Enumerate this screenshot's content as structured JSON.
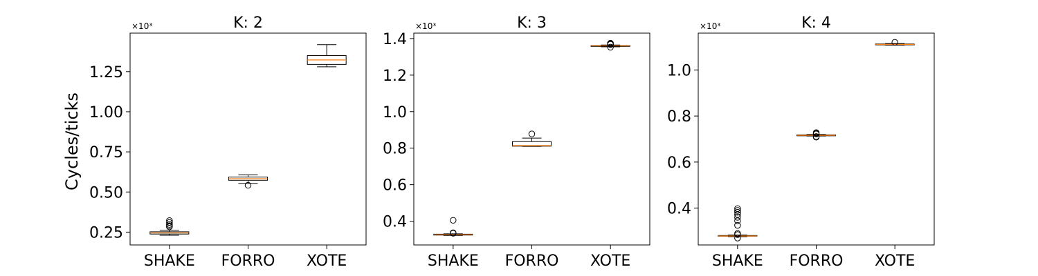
{
  "figure": {
    "ylabel": "Cycles/ticks"
  },
  "chart_data": [
    {
      "type": "box",
      "title": "K: 2",
      "categories": [
        "SHAKE",
        "FORRO",
        "XOTE"
      ],
      "ylabel": "Cycles/ticks",
      "y_multiplier_label": "×10³",
      "ylim": [
        0.17,
        1.49
      ],
      "yticks": [
        0.25,
        0.5,
        0.75,
        1.0,
        1.25
      ],
      "ytick_labels": [
        "0.25",
        "0.50",
        "0.75",
        "1.00",
        "1.25"
      ],
      "boxes": [
        {
          "category": "SHAKE",
          "whisker_low": 0.23,
          "q1": 0.238,
          "median": 0.245,
          "q3": 0.252,
          "whisker_high": 0.262,
          "outliers": [
            0.283,
            0.29,
            0.298,
            0.31,
            0.322
          ]
        },
        {
          "category": "FORRO",
          "whisker_low": 0.553,
          "q1": 0.573,
          "median": 0.583,
          "q3": 0.593,
          "whisker_high": 0.607,
          "outliers": [
            0.542
          ]
        },
        {
          "category": "XOTE",
          "whisker_low": 1.28,
          "q1": 1.295,
          "median": 1.323,
          "q3": 1.35,
          "whisker_high": 1.418,
          "outliers": []
        }
      ]
    },
    {
      "type": "box",
      "title": "K: 3",
      "categories": [
        "SHAKE",
        "FORRO",
        "XOTE"
      ],
      "ylabel": "",
      "y_multiplier_label": "×10³",
      "ylim": [
        0.27,
        1.43
      ],
      "yticks": [
        0.4,
        0.6,
        0.8,
        1.0,
        1.2,
        1.4
      ],
      "ytick_labels": [
        "0.4",
        "0.6",
        "0.8",
        "1.0",
        "1.2",
        "1.4"
      ],
      "boxes": [
        {
          "category": "SHAKE",
          "whisker_low": 0.322,
          "q1": 0.324,
          "median": 0.326,
          "q3": 0.329,
          "whisker_high": 0.331,
          "outliers": [
            0.334,
            0.337,
            0.405
          ]
        },
        {
          "category": "FORRO",
          "whisker_low": 0.81,
          "q1": 0.811,
          "median": 0.814,
          "q3": 0.836,
          "whisker_high": 0.855,
          "outliers": [
            0.878
          ]
        },
        {
          "category": "XOTE",
          "whisker_low": 1.355,
          "q1": 1.357,
          "median": 1.36,
          "q3": 1.362,
          "whisker_high": 1.365,
          "outliers": [
            1.353,
            1.368,
            1.372,
            1.375
          ]
        }
      ]
    },
    {
      "type": "box",
      "title": "K: 4",
      "categories": [
        "SHAKE",
        "FORRO",
        "XOTE"
      ],
      "ylabel": "",
      "y_multiplier_label": "×10³",
      "ylim": [
        0.24,
        1.16
      ],
      "yticks": [
        0.4,
        0.6,
        0.8,
        1.0
      ],
      "ytick_labels": [
        "0.4",
        "0.6",
        "0.8",
        "1.0"
      ],
      "boxes": [
        {
          "category": "SHAKE",
          "whisker_low": 0.276,
          "q1": 0.278,
          "median": 0.279,
          "q3": 0.281,
          "whisker_high": 0.283,
          "outliers": [
            0.27,
            0.285,
            0.29,
            0.325,
            0.345,
            0.36,
            0.372,
            0.382,
            0.39,
            0.398
          ]
        },
        {
          "category": "FORRO",
          "whisker_low": 0.713,
          "q1": 0.714,
          "median": 0.716,
          "q3": 0.718,
          "whisker_high": 0.72,
          "outliers": [
            0.708,
            0.711,
            0.722,
            0.725,
            0.728
          ]
        },
        {
          "category": "XOTE",
          "whisker_low": 1.108,
          "q1": 1.109,
          "median": 1.111,
          "q3": 1.113,
          "whisker_high": 1.115,
          "outliers": [
            1.12
          ]
        }
      ]
    }
  ]
}
